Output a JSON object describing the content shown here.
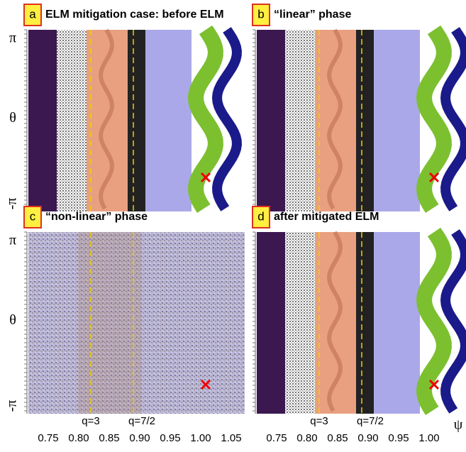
{
  "panels": [
    {
      "letter": "a",
      "title": "ELM mitigation case: before ELM"
    },
    {
      "letter": "b",
      "title": "“linear” phase"
    },
    {
      "letter": "c",
      "title": "“non-linear” phase"
    },
    {
      "letter": "d",
      "title": "after mitigated ELM"
    }
  ],
  "y_axis": {
    "top": "π",
    "label": "θ",
    "bottom": "-π"
  },
  "x_axis": {
    "label": "ψ",
    "ticks_left": [
      "0.75",
      "0.80",
      "0.85",
      "0.90",
      "0.95",
      "1.00",
      "1.05"
    ],
    "ticks_right": [
      "0.75",
      "0.80",
      "0.85",
      "0.90",
      "0.95",
      "1.00"
    ]
  },
  "q_labels": [
    "q=3",
    "q=7/2"
  ]
}
